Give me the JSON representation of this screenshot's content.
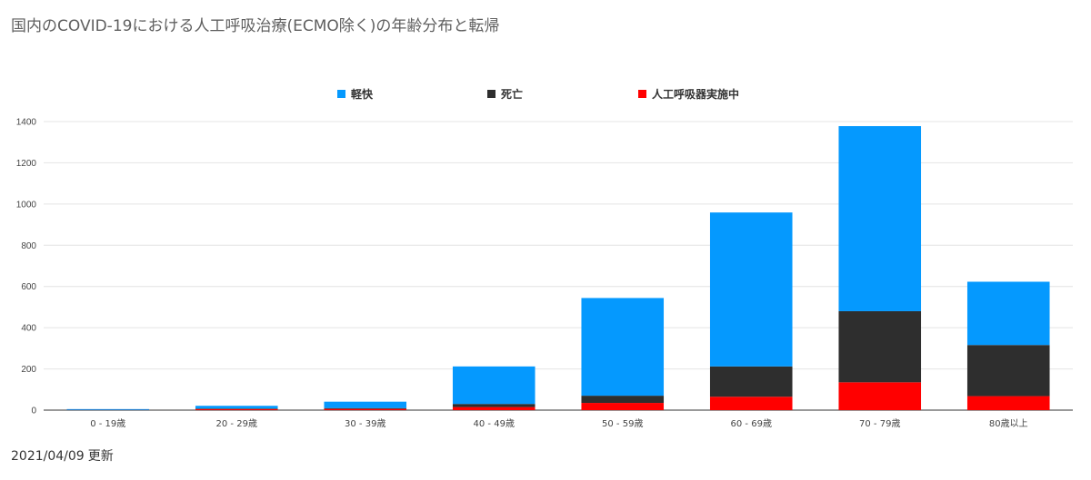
{
  "header": {
    "title": "国内のCOVID-19における人工呼吸治療(ECMO除く)の年齢分布と転帰"
  },
  "footer": {
    "date": "2021/04/09",
    "label": "更新"
  },
  "chart_data": {
    "type": "bar",
    "stacked": true,
    "title": "国内のCOVID-19における人工呼吸治療(ECMO除く)の年齢分布と転帰",
    "categories": [
      "0 - 19歳",
      "20 - 29歳",
      "30 - 39歳",
      "40 - 49歳",
      "50 - 59歳",
      "60 - 69歳",
      "70 - 79歳",
      "80歳以上"
    ],
    "series": [
      {
        "name": "人工呼吸器実施中",
        "color": "#ff0000",
        "values": [
          1,
          5,
          6,
          15,
          35,
          65,
          135,
          68
        ]
      },
      {
        "name": "死亡",
        "color": "#2e2e2e",
        "values": [
          0,
          3,
          4,
          15,
          35,
          147,
          345,
          248
        ]
      },
      {
        "name": "軽快",
        "color": "#0599fe",
        "values": [
          4,
          13,
          31,
          182,
          474,
          747,
          898,
          307
        ]
      }
    ],
    "legend_order": [
      "軽快",
      "死亡",
      "人工呼吸器実施中"
    ],
    "legend_position": "top",
    "yticks": [
      0,
      200,
      400,
      600,
      800,
      1000,
      1200,
      1400
    ],
    "ylim": [
      0,
      1400
    ],
    "grid": true
  }
}
